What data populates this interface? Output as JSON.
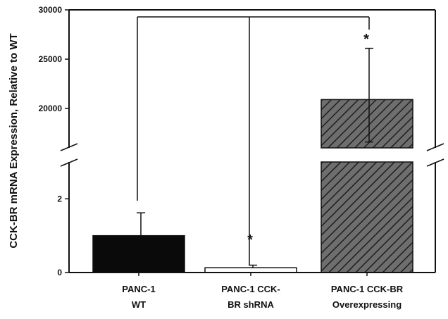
{
  "chart_data": {
    "type": "bar",
    "ylabel": "CCK-BR mRNA Expression, Relative to WT",
    "axis_break": true,
    "lower_segment": {
      "ylim": [
        0,
        3
      ],
      "ticks": [
        "0",
        "2"
      ]
    },
    "upper_segment": {
      "ylim": [
        16000,
        30000
      ],
      "ticks": [
        "20000",
        "25000",
        "30000"
      ]
    },
    "categories": [
      {
        "lines": [
          "PANC-1",
          "WT"
        ]
      },
      {
        "lines": [
          "PANC-1  CCK-",
          "BR shRNA"
        ]
      },
      {
        "lines": [
          "PANC-1  CCK-BR",
          "Overexpressing"
        ]
      }
    ],
    "values": [
      1.0,
      0.13,
      20900
    ],
    "errors": [
      0.62,
      0.07,
      5200
    ],
    "fills": [
      "solid-black",
      "white",
      "hatched-gray"
    ],
    "significance": [
      "",
      "*",
      "*"
    ],
    "comparison_bracket": {
      "from": 0,
      "to": [
        1,
        2
      ]
    },
    "colors": {
      "bar_dark": "#0a0a0a",
      "bar_hatch_bg": "#6e6e6e",
      "bar_hatch_line": "#1e1e1e",
      "axis": "#111111"
    }
  }
}
